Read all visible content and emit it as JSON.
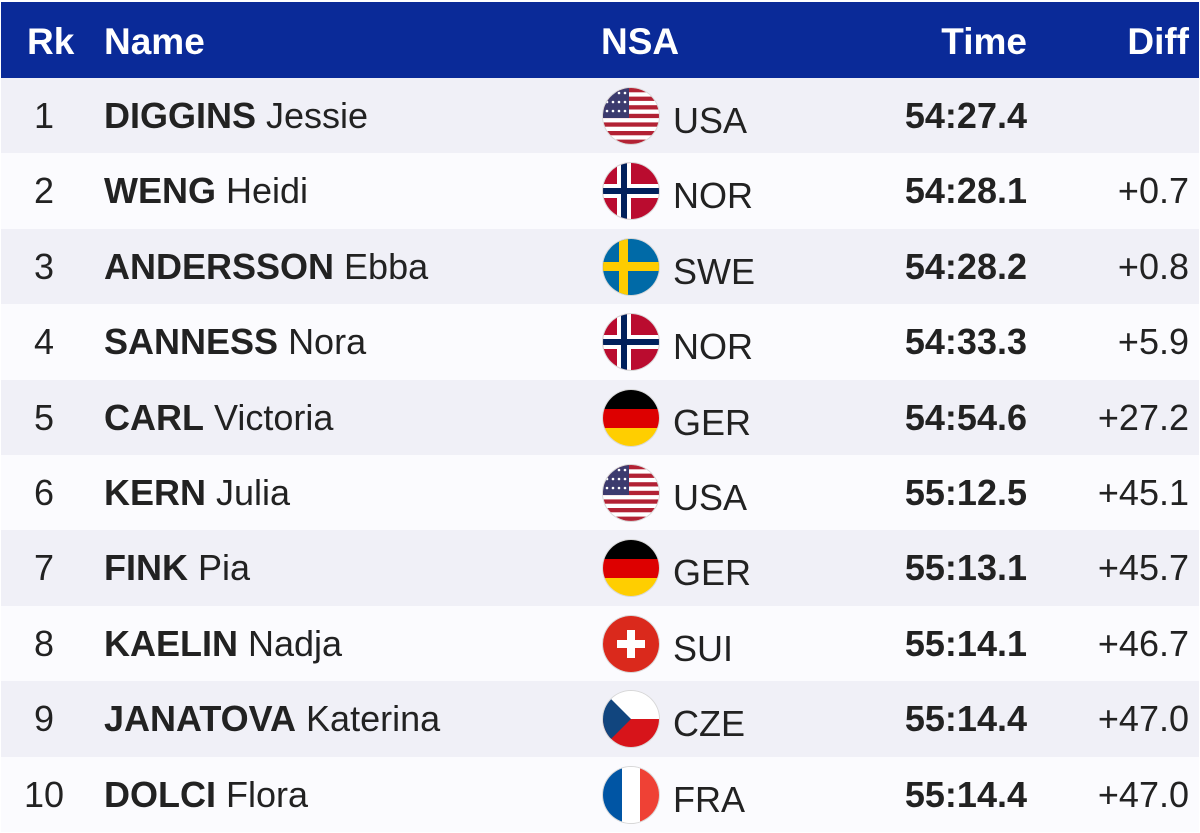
{
  "header": {
    "rank": "Rk",
    "name": "Name",
    "nsa": "NSA",
    "time": "Time",
    "diff": "Diff"
  },
  "colors": {
    "header_bg": "#0a2a98",
    "row_odd_bg": "#f0f0f7",
    "row_even_bg": "#fbfbfe"
  },
  "rows": [
    {
      "rank": "1",
      "surname": "DIGGINS",
      "given": "Jessie",
      "nsa": "USA",
      "flag": "usa-flag-icon",
      "time": "54:27.4",
      "diff": ""
    },
    {
      "rank": "2",
      "surname": "WENG",
      "given": "Heidi",
      "nsa": "NOR",
      "flag": "nor-flag-icon",
      "time": "54:28.1",
      "diff": "+0.7"
    },
    {
      "rank": "3",
      "surname": "ANDERSSON",
      "given": "Ebba",
      "nsa": "SWE",
      "flag": "swe-flag-icon",
      "time": "54:28.2",
      "diff": "+0.8"
    },
    {
      "rank": "4",
      "surname": "SANNESS",
      "given": "Nora",
      "nsa": "NOR",
      "flag": "nor-flag-icon",
      "time": "54:33.3",
      "diff": "+5.9"
    },
    {
      "rank": "5",
      "surname": "CARL",
      "given": "Victoria",
      "nsa": "GER",
      "flag": "ger-flag-icon",
      "time": "54:54.6",
      "diff": "+27.2"
    },
    {
      "rank": "6",
      "surname": "KERN",
      "given": "Julia",
      "nsa": "USA",
      "flag": "usa-flag-icon",
      "time": "55:12.5",
      "diff": "+45.1"
    },
    {
      "rank": "7",
      "surname": "FINK",
      "given": "Pia",
      "nsa": "GER",
      "flag": "ger-flag-icon",
      "time": "55:13.1",
      "diff": "+45.7"
    },
    {
      "rank": "8",
      "surname": "KAELIN",
      "given": "Nadja",
      "nsa": "SUI",
      "flag": "sui-flag-icon",
      "time": "55:14.1",
      "diff": "+46.7"
    },
    {
      "rank": "9",
      "surname": "JANATOVA",
      "given": "Katerina",
      "nsa": "CZE",
      "flag": "cze-flag-icon",
      "time": "55:14.4",
      "diff": "+47.0"
    },
    {
      "rank": "10",
      "surname": "DOLCI",
      "given": "Flora",
      "nsa": "FRA",
      "flag": "fra-flag-icon",
      "time": "55:14.4",
      "diff": "+47.0"
    }
  ]
}
